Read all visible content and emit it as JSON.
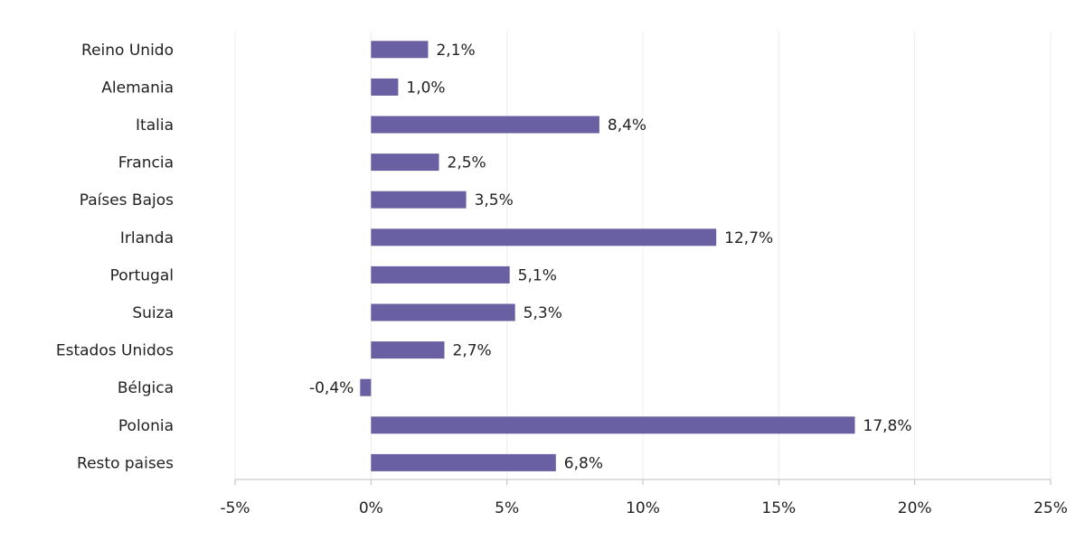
{
  "chart_data": {
    "type": "bar",
    "orientation": "horizontal",
    "title": "",
    "xlabel": "",
    "ylabel": "",
    "categories": [
      "Reino Unido",
      "Alemania",
      "Italia",
      "Francia",
      "Países Bajos",
      "Irlanda",
      "Portugal",
      "Suiza",
      "Estados Unidos",
      "Bélgica",
      "Polonia",
      "Resto paises"
    ],
    "values": [
      2.1,
      1.0,
      8.4,
      2.5,
      3.5,
      12.7,
      5.1,
      5.3,
      2.7,
      -0.4,
      17.8,
      6.8
    ],
    "value_labels": [
      "2,1%",
      "1,0%",
      "8,4%",
      "2,5%",
      "3,5%",
      "12,7%",
      "5,1%",
      "5,3%",
      "2,7%",
      "-0,4%",
      "17,8%",
      "6,8%"
    ],
    "xlim": [
      -5,
      25
    ],
    "ticks": [
      -5,
      0,
      5,
      10,
      15,
      20,
      25
    ],
    "tick_labels": [
      "-5%",
      "0%",
      "5%",
      "10%",
      "15%",
      "20%",
      "25%"
    ],
    "grid": true,
    "legend": "none",
    "bar_color": "#6960a3"
  }
}
